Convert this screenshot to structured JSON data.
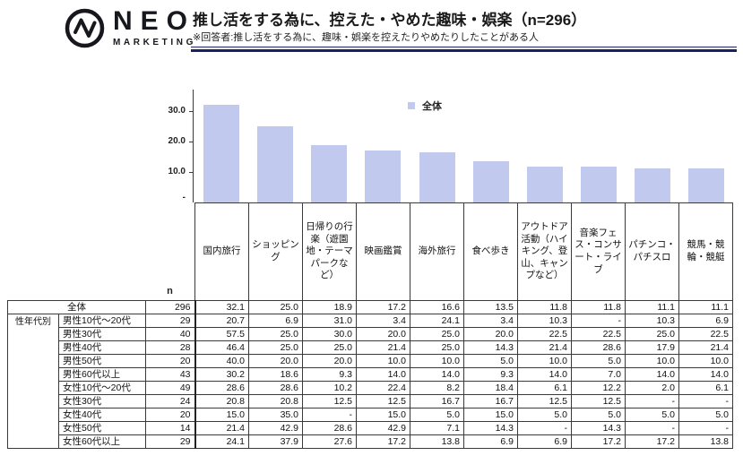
{
  "header": {
    "brand": "NEO",
    "brand_sub": "MARKETING",
    "title": "推し活をする為に、控えた・やめた趣味・娯楽（n=296）",
    "subtitle": "※回答者:推し活をする為に、趣味・娯楽を控えたりやめたりしたことがある人"
  },
  "chart_data": {
    "type": "bar",
    "title": "推し活をする為に、控えた・やめた趣味・娯楽（n=296）",
    "legend": "全体",
    "legend_position": "top-center",
    "categories": [
      "国内旅行",
      "ショッピング",
      "日帰りの行楽（遊園地・テーマパークなど）",
      "映画鑑賞",
      "海外旅行",
      "食べ歩き",
      "アウトドア活動（ハイキング、登山、キャンプなど）",
      "音楽フェス・コンサート・ライブ",
      "パチンコ・パチスロ",
      "競馬・競輪・競艇"
    ],
    "values": [
      32.1,
      25.0,
      18.9,
      17.2,
      16.6,
      13.5,
      11.8,
      11.8,
      11.1,
      11.1
    ],
    "ylim": [
      0,
      35
    ],
    "grid": false,
    "yticks": [
      {
        "label": "30.0",
        "value": 30
      },
      {
        "label": "20.0",
        "value": 20
      },
      {
        "label": "10.0",
        "value": 10
      },
      {
        "label": "-",
        "value": 0
      }
    ],
    "bar_color": "#c2c9ee"
  },
  "table": {
    "n_label": "n",
    "group_label": "性年代別",
    "columns": [
      "国内旅行",
      "ショッピング",
      "日帰りの行楽（遊園地・テーマパークなど）",
      "映画鑑賞",
      "海外旅行",
      "食べ歩き",
      "アウトドア活動（ハイキング、登山、キャンプなど）",
      "音楽フェス・コンサート・ライブ",
      "パチンコ・パチスロ",
      "競馬・競輪・競艇"
    ],
    "rows": [
      {
        "label": "全体",
        "n": "296",
        "values": [
          "32.1",
          "25.0",
          "18.9",
          "17.2",
          "16.6",
          "13.5",
          "11.8",
          "11.8",
          "11.1",
          "11.1"
        ]
      },
      {
        "label": "男性10代～20代",
        "n": "29",
        "values": [
          "20.7",
          "6.9",
          "31.0",
          "3.4",
          "24.1",
          "3.4",
          "10.3",
          "-",
          "10.3",
          "6.9"
        ]
      },
      {
        "label": "男性30代",
        "n": "40",
        "values": [
          "57.5",
          "25.0",
          "30.0",
          "20.0",
          "25.0",
          "20.0",
          "22.5",
          "22.5",
          "25.0",
          "22.5"
        ]
      },
      {
        "label": "男性40代",
        "n": "28",
        "values": [
          "46.4",
          "25.0",
          "25.0",
          "21.4",
          "25.0",
          "14.3",
          "21.4",
          "28.6",
          "17.9",
          "21.4"
        ]
      },
      {
        "label": "男性50代",
        "n": "20",
        "values": [
          "40.0",
          "20.0",
          "20.0",
          "10.0",
          "10.0",
          "5.0",
          "10.0",
          "5.0",
          "10.0",
          "10.0"
        ]
      },
      {
        "label": "男性60代以上",
        "n": "43",
        "values": [
          "30.2",
          "18.6",
          "9.3",
          "14.0",
          "14.0",
          "9.3",
          "14.0",
          "7.0",
          "14.0",
          "14.0"
        ]
      },
      {
        "label": "女性10代～20代",
        "n": "49",
        "values": [
          "28.6",
          "28.6",
          "10.2",
          "22.4",
          "8.2",
          "18.4",
          "6.1",
          "12.2",
          "2.0",
          "6.1"
        ]
      },
      {
        "label": "女性30代",
        "n": "24",
        "values": [
          "20.8",
          "20.8",
          "12.5",
          "12.5",
          "16.7",
          "16.7",
          "12.5",
          "12.5",
          "-",
          "-"
        ]
      },
      {
        "label": "女性40代",
        "n": "20",
        "values": [
          "15.0",
          "35.0",
          "-",
          "15.0",
          "5.0",
          "15.0",
          "5.0",
          "5.0",
          "5.0",
          "5.0"
        ]
      },
      {
        "label": "女性50代",
        "n": "14",
        "values": [
          "21.4",
          "42.9",
          "28.6",
          "42.9",
          "7.1",
          "14.3",
          "-",
          "14.3",
          "-",
          "-"
        ]
      },
      {
        "label": "女性60代以上",
        "n": "29",
        "values": [
          "24.1",
          "37.9",
          "27.6",
          "17.2",
          "13.8",
          "6.9",
          "6.9",
          "17.2",
          "17.2",
          "13.8"
        ]
      }
    ]
  }
}
